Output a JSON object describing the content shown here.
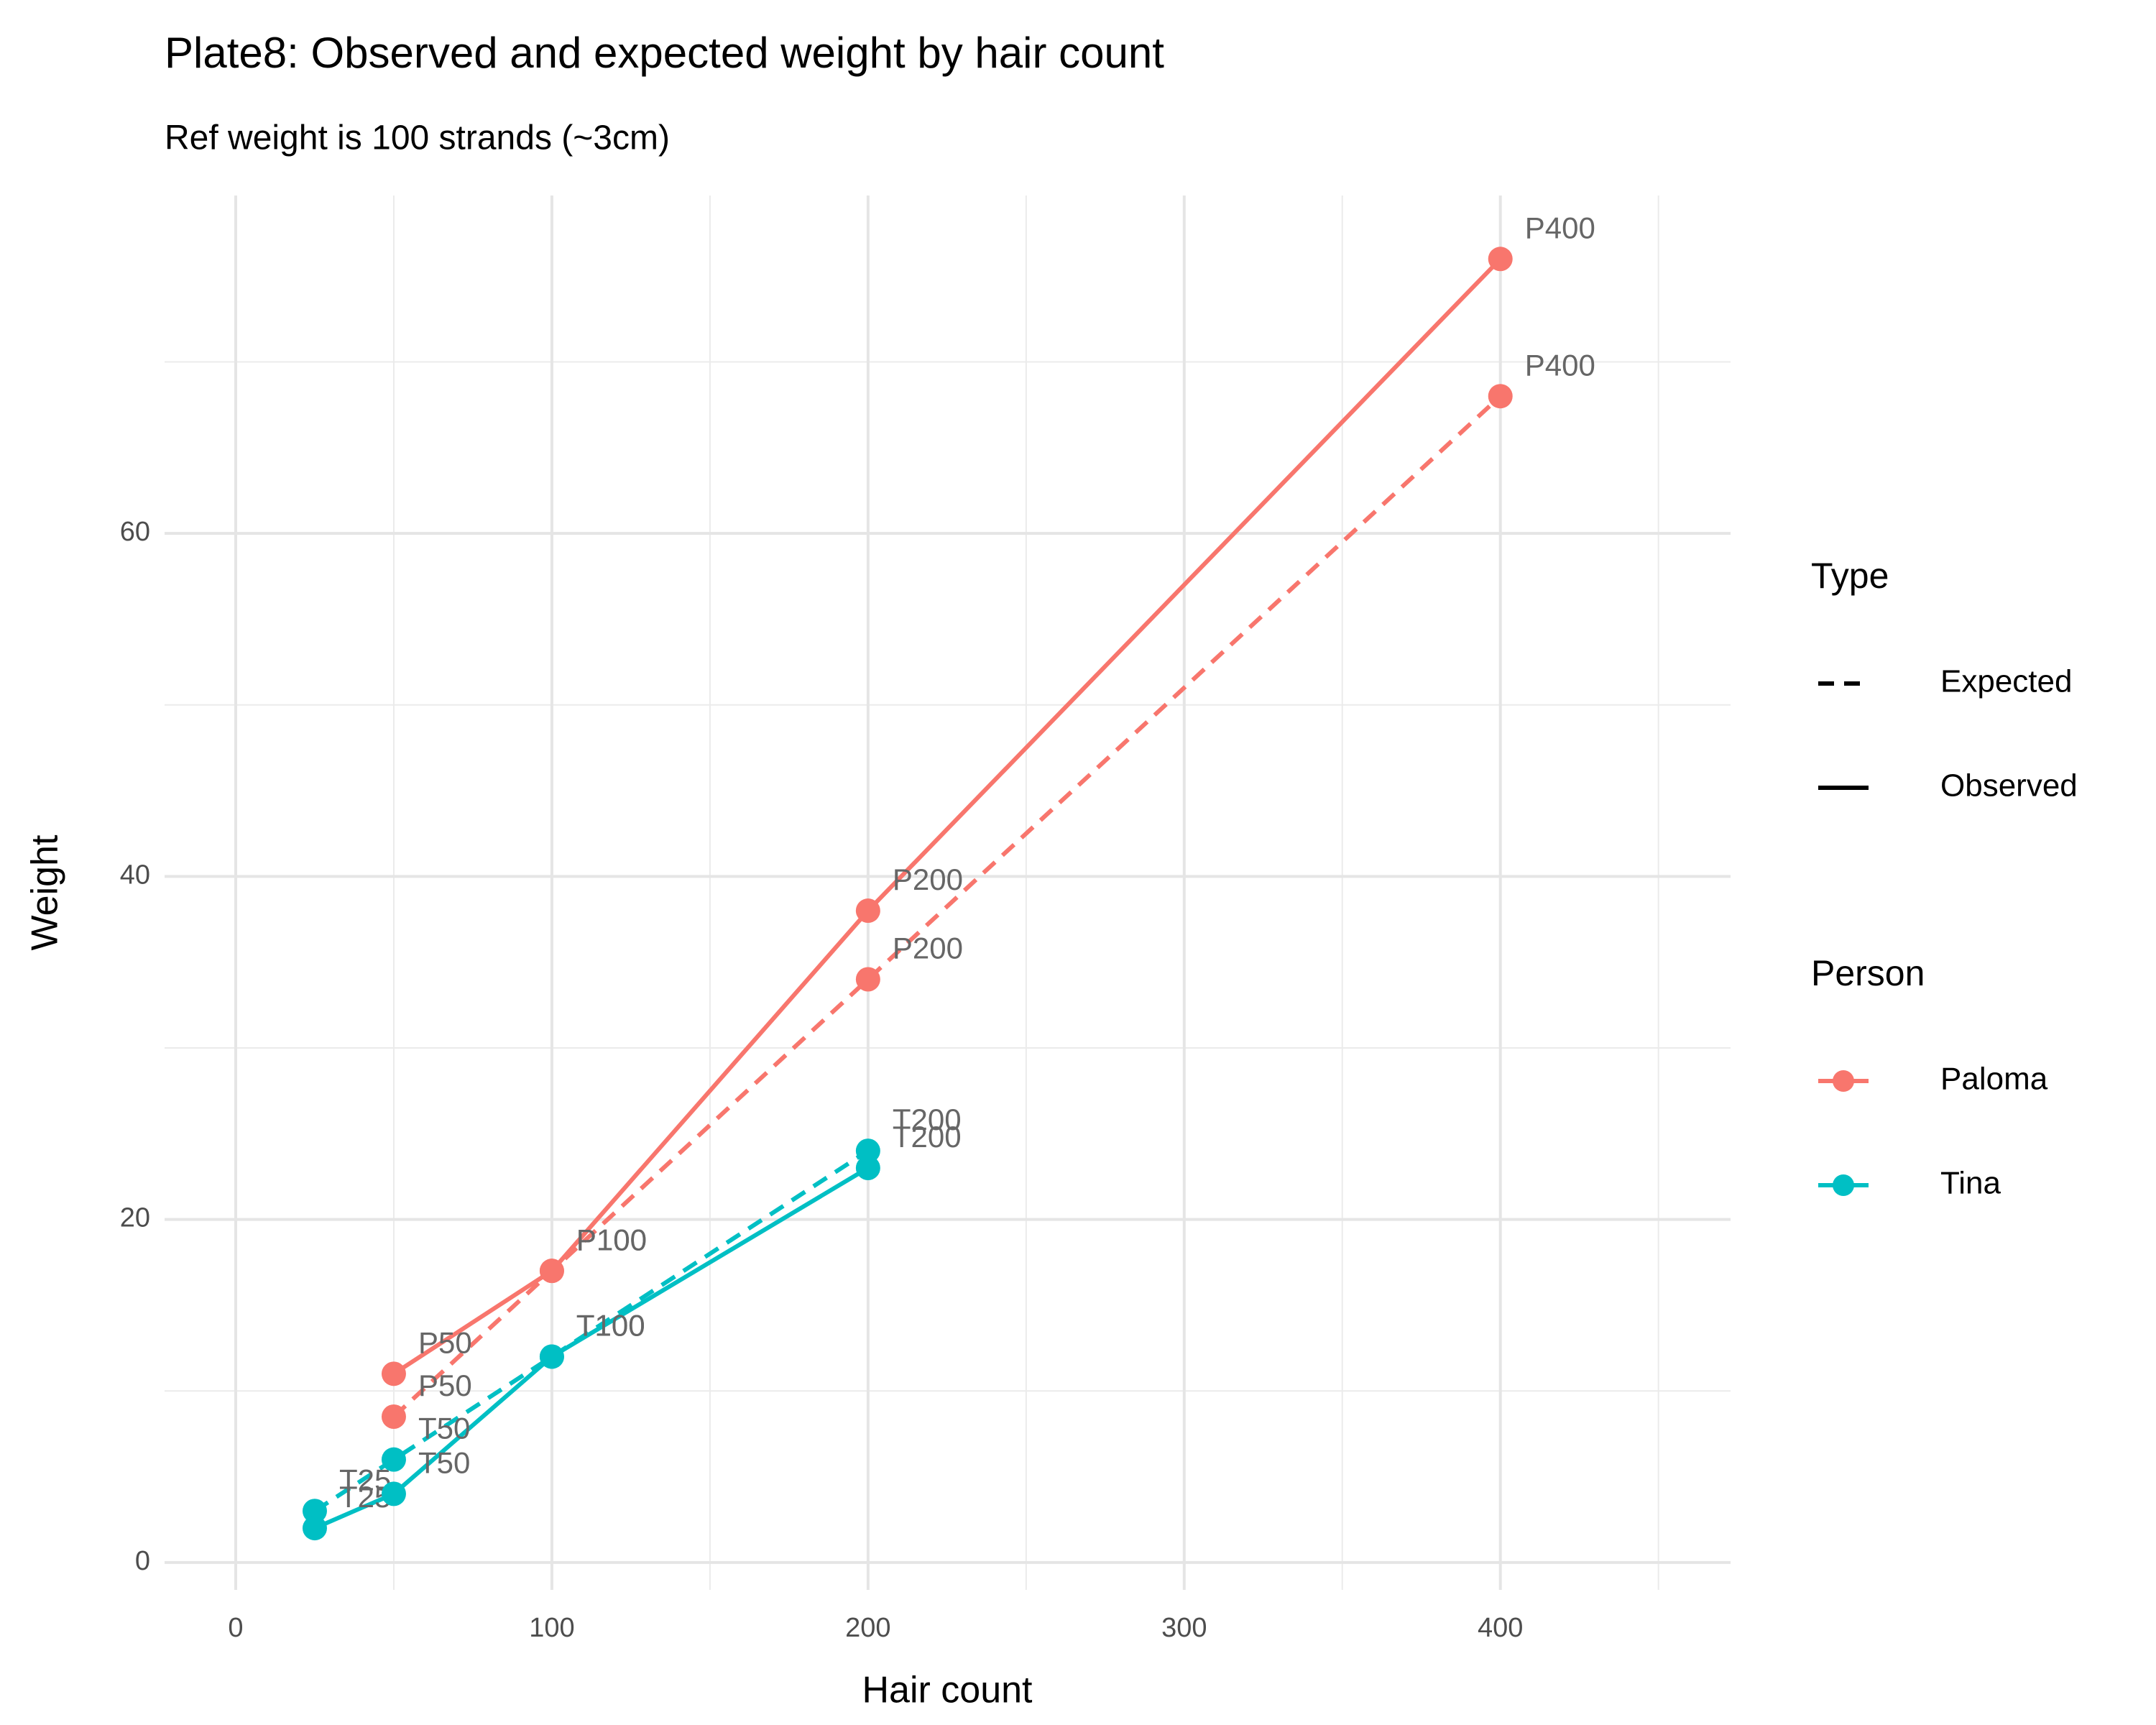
{
  "chart_data": {
    "type": "line",
    "title": "Plate8: Observed and expected weight by hair count",
    "subtitle": "Ref weight is 100 strands (~3cm)",
    "xlabel": "Hair count",
    "ylabel": "Weight",
    "xlim": [
      -22.5,
      472.8
    ],
    "ylim": [
      -1.6,
      79.7
    ],
    "xticks": [
      0,
      100,
      200,
      300,
      400
    ],
    "yticks": [
      0,
      20,
      40,
      60
    ],
    "xminor": [
      50,
      150,
      250,
      350,
      450
    ],
    "yminor": [
      10,
      30,
      50,
      70
    ],
    "grid": true,
    "linetype_title": "Type",
    "linetypes": [
      {
        "name": "Expected",
        "dash": true
      },
      {
        "name": "Observed",
        "dash": false
      }
    ],
    "color_title": "Person",
    "series": [
      {
        "name": "Paloma",
        "color": "#F8766D",
        "lines": [
          {
            "x": [
              50,
              100,
              200,
              400
            ],
            "values": [
              8.5,
              17,
              34,
              68
            ],
            "labels": [
              "P50",
              "P100",
              "P200",
              "P400"
            ]
          },
          {
            "x": [
              50,
              100,
              200,
              400
            ],
            "values": [
              11,
              17,
              38,
              76
            ],
            "labels": [
              "P50",
              "P100",
              "P200",
              "P400"
            ]
          }
        ]
      },
      {
        "name": "Tina",
        "color": "#00BFC4",
        "lines": [
          {
            "x": [
              25,
              50,
              100,
              200
            ],
            "values": [
              3,
              6,
              12,
              24
            ],
            "labels": [
              "T25",
              "T50",
              "T100",
              "T200"
            ]
          },
          {
            "x": [
              25,
              50,
              100,
              200
            ],
            "values": [
              2,
              4,
              12,
              23
            ],
            "labels": [
              "T25",
              "T50",
              "T100",
              "T200"
            ]
          }
        ]
      }
    ]
  }
}
